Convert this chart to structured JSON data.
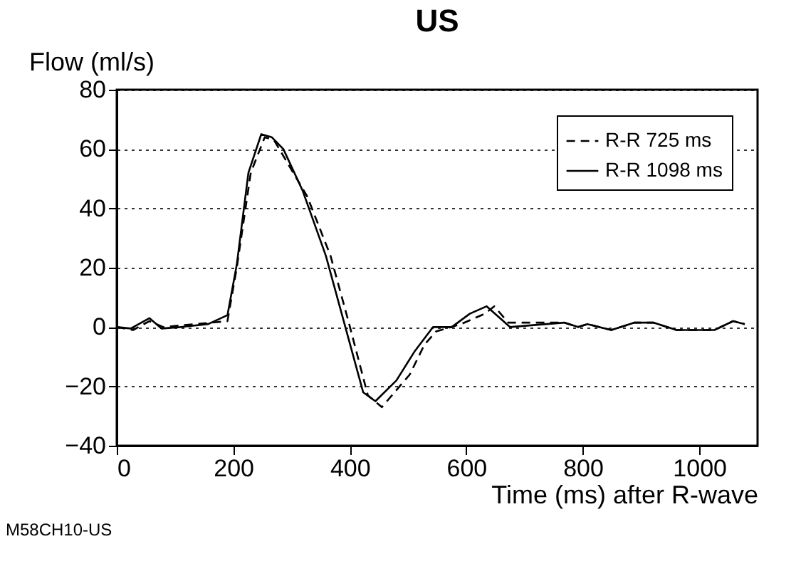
{
  "chart_data": {
    "type": "line",
    "title": "US",
    "xlabel": "Time (ms) after R-wave",
    "ylabel": "Flow (ml/s)",
    "xlim": [
      0,
      1100
    ],
    "xticks": [
      0,
      200,
      400,
      600,
      800,
      1000
    ],
    "ylim": [
      -40,
      80
    ],
    "yticks": [
      -40,
      -20,
      0,
      20,
      40,
      60,
      80
    ],
    "grid": "y",
    "legend": "top right",
    "annotations": [
      "M58CH10-US"
    ],
    "series": [
      {
        "name": "R-R  725 ms",
        "color": "#000000",
        "line_style": "dashed",
        "x": [
          0,
          28,
          56,
          80,
          190,
          206,
          230,
          254,
          270,
          327,
          367,
          399,
          431,
          455,
          503,
          528,
          548,
          591,
          632,
          648,
          672,
          708,
          768,
          792,
          808,
          849,
          889,
          921,
          961,
          1026,
          1058,
          1078
        ],
        "values": [
          0,
          -1,
          2,
          0,
          2,
          20,
          52,
          64,
          63,
          44,
          24,
          1,
          -23,
          -27,
          -16,
          -6,
          -1.5,
          1,
          4.5,
          7,
          1.5,
          1.5,
          1.5,
          0,
          1,
          -1,
          1.5,
          1.5,
          -1,
          -1,
          2,
          1
        ]
      },
      {
        "name": "R-R 1098 ms",
        "color": "#000000",
        "line_style": "solid",
        "x": [
          0,
          24,
          56,
          77,
          109,
          157,
          190,
          206,
          226,
          248,
          266,
          286,
          319,
          359,
          391,
          423,
          444,
          480,
          512,
          543,
          575,
          606,
          635,
          675,
          768,
          792,
          808,
          849,
          889,
          921,
          961,
          1026,
          1058,
          1078
        ],
        "values": [
          0,
          -0.5,
          3,
          -0.5,
          0,
          1,
          4,
          21,
          52,
          65,
          64,
          60,
          46,
          24,
          1,
          -22,
          -25,
          -18,
          -8,
          0,
          0,
          4.5,
          7,
          0,
          1.5,
          0,
          1,
          -1,
          1.5,
          1.5,
          -1,
          -1,
          2,
          1
        ]
      }
    ]
  }
}
